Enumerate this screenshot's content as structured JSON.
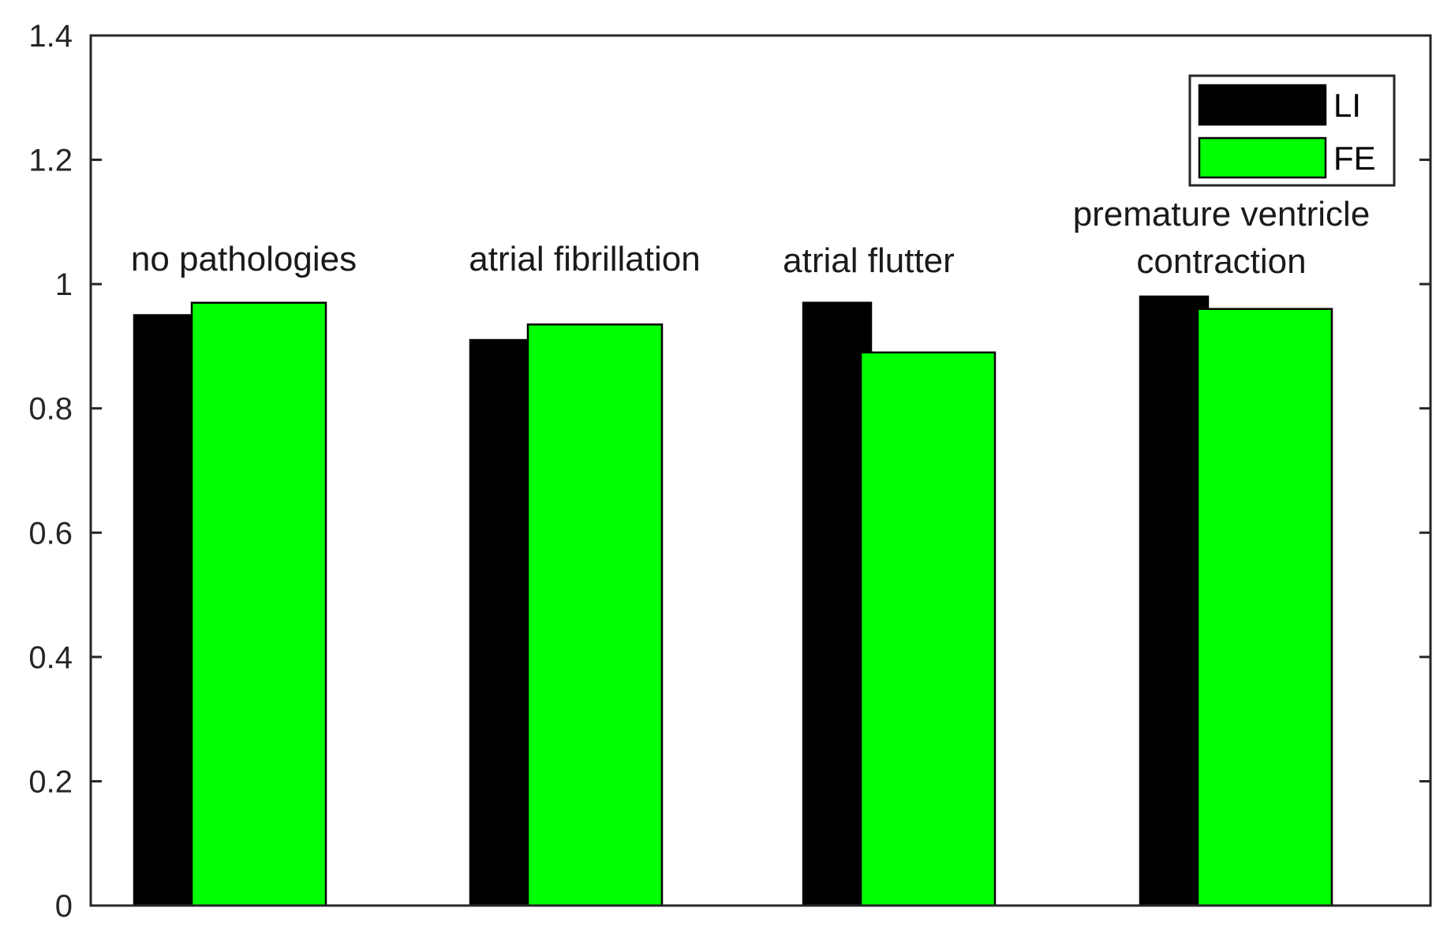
{
  "chart_data": {
    "type": "bar",
    "title": "",
    "xlabel": "",
    "ylabel": "",
    "ylim": [
      0,
      1.4
    ],
    "yticks": [
      "0",
      "0.2",
      "0.4",
      "0.6",
      "0.8",
      "1",
      "1.2",
      "1.4"
    ],
    "grid": false,
    "legend_position": "top-right",
    "categories": [
      {
        "label_lines": [
          "no pathologies"
        ]
      },
      {
        "label_lines": [
          "atrial fibrillation"
        ]
      },
      {
        "label_lines": [
          "atrial flutter"
        ]
      },
      {
        "label_lines": [
          "premature ventricle",
          "contraction"
        ]
      }
    ],
    "series": [
      {
        "name": "LI",
        "color": "#000000",
        "values": [
          0.95,
          0.91,
          0.97,
          0.98
        ]
      },
      {
        "name": "FE",
        "color": "#00ff00",
        "values": [
          0.97,
          0.935,
          0.89,
          0.96
        ]
      }
    ]
  }
}
